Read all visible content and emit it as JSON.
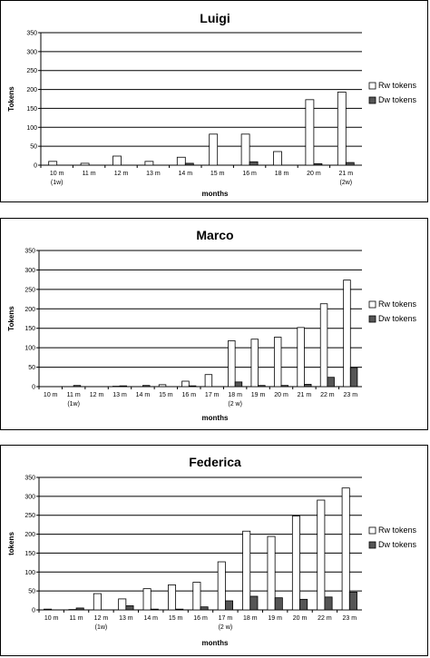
{
  "chart_data": [
    {
      "type": "bar",
      "title": "Luigi",
      "xlabel": "months",
      "ylabel": "Tokens",
      "ylim": [
        0,
        350
      ],
      "yticks": [
        0,
        50,
        100,
        150,
        200,
        250,
        300,
        350
      ],
      "grid": true,
      "legend_position": "right",
      "categories": [
        [
          "10 m",
          "(1w)"
        ],
        [
          "11 m"
        ],
        [
          "12 m"
        ],
        [
          "13 m"
        ],
        [
          "14 m"
        ],
        [
          "15 m"
        ],
        [
          "16 m"
        ],
        [
          "18 m"
        ],
        [
          "20 m"
        ],
        [
          "21 m",
          "(2w)"
        ]
      ],
      "series": [
        {
          "name": "Rw tokens",
          "color": "#ffffff",
          "values": [
            10,
            5,
            24,
            10,
            21,
            82,
            82,
            36,
            173,
            193
          ]
        },
        {
          "name": "Dw tokens",
          "color": "#555555",
          "values": [
            0,
            0,
            0,
            0,
            5,
            0,
            9,
            0,
            4,
            7
          ]
        }
      ]
    },
    {
      "type": "bar",
      "title": "Marco",
      "xlabel": "months",
      "ylabel": "Tokens",
      "ylim": [
        0,
        350
      ],
      "yticks": [
        0,
        50,
        100,
        150,
        200,
        250,
        300,
        350
      ],
      "grid": true,
      "legend_position": "right",
      "categories": [
        [
          "10 m"
        ],
        [
          "11 m",
          "(1w)"
        ],
        [
          "12 m"
        ],
        [
          "13 m"
        ],
        [
          "14 m"
        ],
        [
          "15 m"
        ],
        [
          "16 m"
        ],
        [
          "17 m"
        ],
        [
          "18 m",
          "(2 w)"
        ],
        [
          "19 m"
        ],
        [
          "20 m"
        ],
        [
          "21 m"
        ],
        [
          "22 m"
        ],
        [
          "23 m"
        ]
      ],
      "series": [
        {
          "name": "Rw tokens",
          "color": "#ffffff",
          "values": [
            0,
            0,
            0,
            1,
            0,
            5,
            14,
            31,
            118,
            122,
            127,
            152,
            213,
            274
          ]
        },
        {
          "name": "Dw tokens",
          "color": "#555555",
          "values": [
            0,
            3,
            0,
            2,
            3,
            0,
            2,
            0,
            12,
            3,
            3,
            6,
            24,
            49
          ]
        }
      ]
    },
    {
      "type": "bar",
      "title": "Federica",
      "xlabel": "months",
      "ylabel": "tokens",
      "ylim": [
        0,
        350
      ],
      "yticks": [
        0,
        50,
        100,
        150,
        200,
        250,
        300,
        350
      ],
      "grid": true,
      "legend_position": "right",
      "categories": [
        [
          "10 m"
        ],
        [
          "11 m"
        ],
        [
          "12 m",
          "(1w)"
        ],
        [
          "13 m"
        ],
        [
          "14 m"
        ],
        [
          "15 m"
        ],
        [
          "16 m"
        ],
        [
          "17 m",
          "(2 w)"
        ],
        [
          "18 m"
        ],
        [
          "19 m"
        ],
        [
          "20 m"
        ],
        [
          "22 m"
        ],
        [
          "23 m"
        ]
      ],
      "series": [
        {
          "name": "Rw tokens",
          "color": "#ffffff",
          "values": [
            2,
            1,
            43,
            29,
            56,
            66,
            73,
            127,
            208,
            194,
            248,
            290,
            322
          ]
        },
        {
          "name": "Dw tokens",
          "color": "#555555",
          "values": [
            0,
            5,
            0,
            11,
            2,
            2,
            8,
            24,
            36,
            32,
            28,
            34,
            47
          ]
        }
      ]
    }
  ]
}
